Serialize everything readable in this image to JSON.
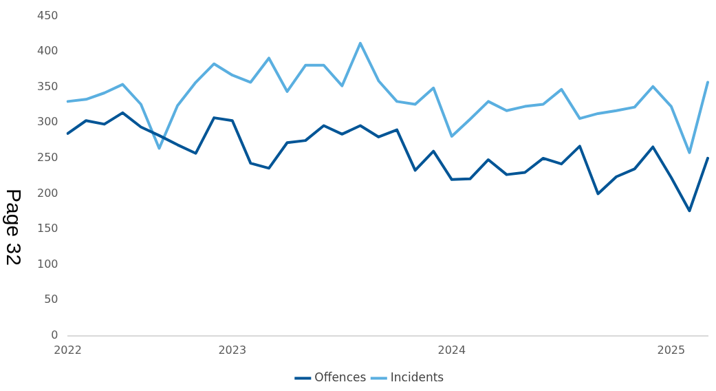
{
  "chart_data": {
    "type": "line",
    "categories": [
      "2022",
      null,
      null,
      null,
      null,
      null,
      null,
      null,
      null,
      "2023",
      null,
      null,
      null,
      null,
      null,
      null,
      null,
      null,
      null,
      null,
      null,
      "2024",
      null,
      null,
      null,
      null,
      null,
      null,
      null,
      null,
      null,
      null,
      null,
      "2025",
      null,
      null
    ],
    "series": [
      {
        "name": "Offences",
        "color": "#005596",
        "values": [
          285,
          303,
          298,
          314,
          294,
          282,
          269,
          257,
          307,
          303,
          243,
          236,
          272,
          275,
          296,
          284,
          296,
          280,
          290,
          233,
          260,
          220,
          221,
          248,
          227,
          230,
          250,
          242,
          267,
          200,
          224,
          235,
          266,
          223,
          176,
          250
        ]
      },
      {
        "name": "Incidents",
        "color": "#5aafe0",
        "values": [
          330,
          333,
          342,
          354,
          326,
          264,
          324,
          357,
          383,
          367,
          357,
          391,
          344,
          381,
          381,
          352,
          412,
          359,
          330,
          326,
          349,
          281,
          305,
          330,
          317,
          323,
          326,
          347,
          306,
          313,
          317,
          322,
          351,
          323,
          258,
          357
        ]
      }
    ],
    "ylim": [
      0,
      450
    ],
    "yticks": [
      0,
      50,
      100,
      150,
      200,
      250,
      300,
      350,
      400,
      450
    ],
    "grid": false,
    "legend": "bottom",
    "marker": "none",
    "line_style": "solid",
    "annotations": [
      "Page 32"
    ]
  }
}
